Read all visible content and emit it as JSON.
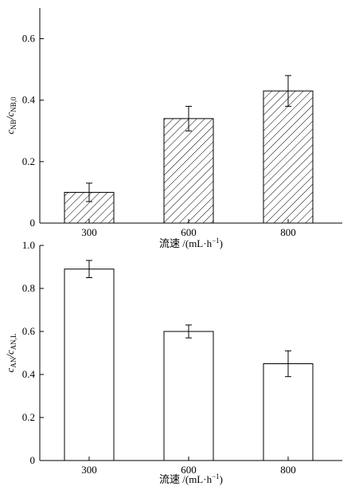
{
  "chart_data": [
    {
      "type": "bar",
      "categories": [
        "300",
        "600",
        "800"
      ],
      "values": [
        0.1,
        0.34,
        0.43
      ],
      "errors": [
        0.03,
        0.04,
        0.05
      ],
      "ylabel_main": "c",
      "ylabel_sub1": "NB",
      "ylabel_sep": "/c",
      "ylabel_sub2": "NB,0",
      "xlabel": "流速 /(mL·h",
      "xlabel_sup": "−1",
      "xlabel_close": ")",
      "ylim": [
        0,
        0.7
      ],
      "yticks": [
        0,
        0.2,
        0.4,
        0.6
      ],
      "ytick_labels": [
        "0",
        "0.2",
        "0.4",
        "0.6"
      ],
      "fill": "hatched",
      "grid": false
    },
    {
      "type": "bar",
      "categories": [
        "300",
        "600",
        "800"
      ],
      "values": [
        0.89,
        0.6,
        0.45
      ],
      "errors": [
        0.04,
        0.03,
        0.06
      ],
      "ylabel_main": "c",
      "ylabel_sub1": "AN",
      "ylabel_sep": "/c",
      "ylabel_sub2": "AN,L",
      "xlabel": "流速 /(mL·h",
      "xlabel_sup": "−1",
      "xlabel_close": ")",
      "ylim": [
        0,
        1.0
      ],
      "yticks": [
        0,
        0.2,
        0.4,
        0.6,
        0.8,
        1.0
      ],
      "ytick_labels": [
        "0",
        "0.2",
        "0.4",
        "0.6",
        "0.8",
        "1.0"
      ],
      "fill": "empty",
      "grid": false
    }
  ]
}
